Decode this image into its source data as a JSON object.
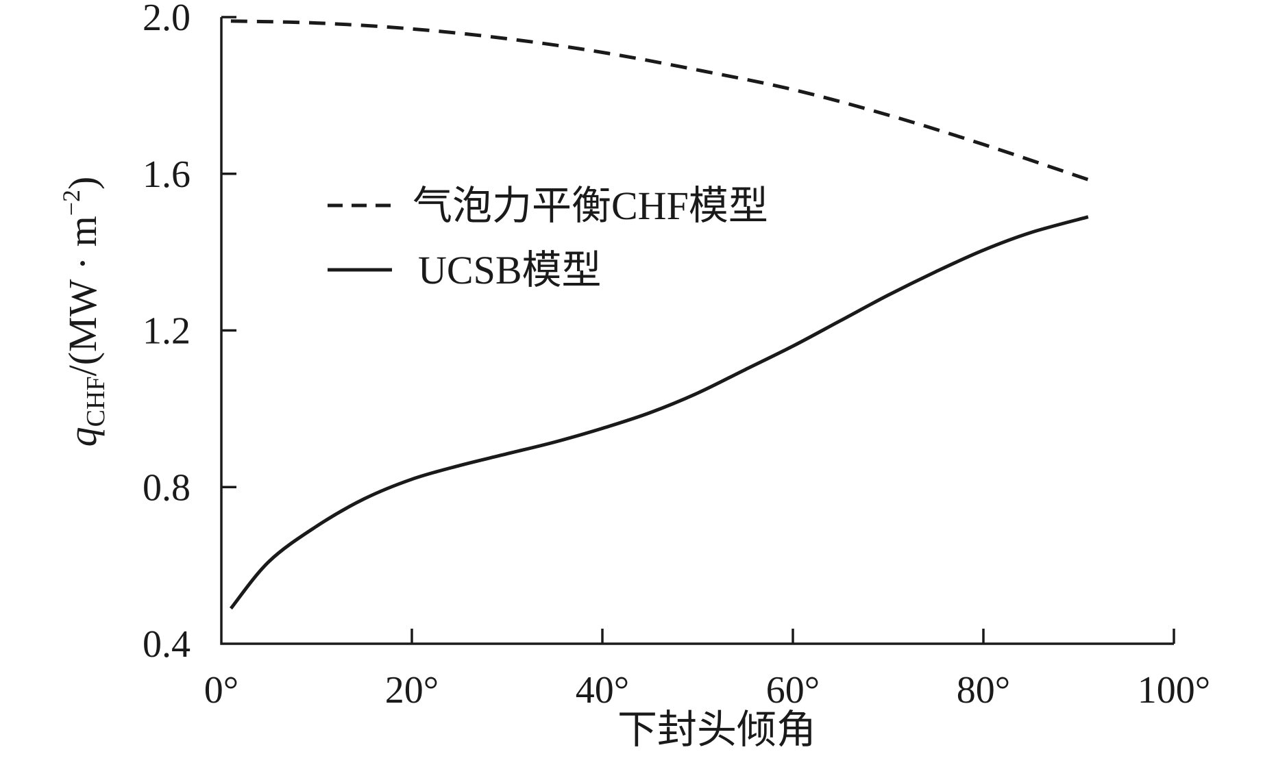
{
  "chart_data": {
    "type": "line",
    "title": "",
    "xlabel": "下封头倾角",
    "ylabel": {
      "symbol": "q",
      "subscript": "CHF",
      "unit_prefix": "/(MW · m",
      "unit_exponent": "−2",
      "unit_suffix": ")"
    },
    "xlim": [
      0,
      100
    ],
    "ylim": [
      0.4,
      2.0
    ],
    "x_ticks": [
      0,
      20,
      40,
      60,
      80,
      100
    ],
    "x_tick_labels": [
      "0°",
      "20°",
      "40°",
      "60°",
      "80°",
      "100°"
    ],
    "y_ticks": [
      0.4,
      0.8,
      1.2,
      1.6,
      2.0
    ],
    "y_tick_labels": [
      "0.4",
      "0.8",
      "1.2",
      "1.6",
      "2.0"
    ],
    "grid": false,
    "legend_position": "upper-left",
    "series": [
      {
        "name": "气泡力平衡CHF模型",
        "style": "dashed",
        "color": "#1a1a1a",
        "x": [
          1,
          10,
          20,
          30,
          40,
          50,
          60,
          70,
          80,
          91
        ],
        "y": [
          1.99,
          1.985,
          1.97,
          1.945,
          1.91,
          1.865,
          1.815,
          1.75,
          1.675,
          1.585
        ]
      },
      {
        "name": "UCSB模型",
        "style": "solid",
        "color": "#1a1a1a",
        "x": [
          1,
          5,
          10,
          15,
          20,
          25,
          30,
          35,
          40,
          45,
          50,
          55,
          60,
          65,
          70,
          75,
          80,
          85,
          91
        ],
        "y": [
          0.49,
          0.61,
          0.7,
          0.77,
          0.82,
          0.855,
          0.885,
          0.915,
          0.95,
          0.99,
          1.04,
          1.1,
          1.16,
          1.225,
          1.29,
          1.35,
          1.405,
          1.45,
          1.49
        ]
      }
    ]
  }
}
